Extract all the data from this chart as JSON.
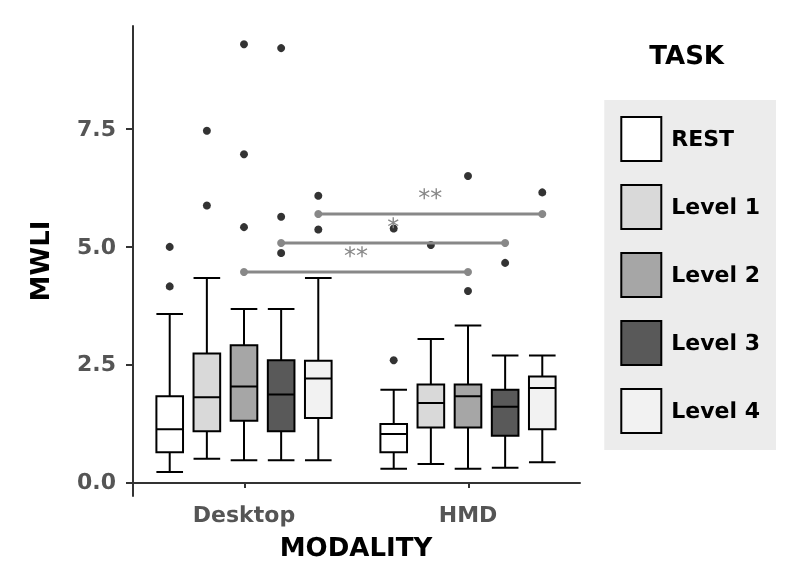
{
  "chart_data": {
    "type": "box",
    "xlabel": "MODALITY",
    "ylabel": "MWLI",
    "legend_title": "TASK",
    "legend": "right",
    "grid": false,
    "categories": [
      "Desktop",
      "HMD"
    ],
    "ylim": [
      -0.3,
      9.7
    ],
    "yticks": [
      {
        "value": 0,
        "label": "0.0"
      },
      {
        "value": 2.5,
        "label": "2.5"
      },
      {
        "value": 5,
        "label": "5.0"
      },
      {
        "value": 7.5,
        "label": "7.5"
      }
    ],
    "series": [
      {
        "name": "REST",
        "color": "#ffffff",
        "boxes": [
          {
            "low": 0.21,
            "q1": 0.63,
            "median": 1.12,
            "q3": 1.82,
            "high": 3.57,
            "outliers": [
              4.16,
              5.0
            ]
          },
          {
            "low": 0.28,
            "q1": 0.63,
            "median": 1.02,
            "q3": 1.23,
            "high": 1.96,
            "outliers": [
              2.59,
              5.39
            ]
          }
        ]
      },
      {
        "name": "Level 1",
        "color": "#d9d9d9",
        "boxes": [
          {
            "low": 0.49,
            "q1": 1.08,
            "median": 1.8,
            "q3": 2.73,
            "high": 4.34,
            "outliers": [
              5.88,
              7.47
            ]
          },
          {
            "low": 0.38,
            "q1": 1.16,
            "median": 1.68,
            "q3": 2.07,
            "high": 3.04,
            "outliers": [
              5.04
            ]
          }
        ]
      },
      {
        "name": "Level 2",
        "color": "#a6a6a6",
        "boxes": [
          {
            "low": 0.46,
            "q1": 1.3,
            "median": 2.03,
            "q3": 2.91,
            "high": 3.68,
            "outliers": [
              5.42,
              6.97,
              9.31
            ]
          },
          {
            "low": 0.28,
            "q1": 1.16,
            "median": 1.82,
            "q3": 2.07,
            "high": 3.33,
            "outliers": [
              4.06,
              6.51
            ]
          }
        ]
      },
      {
        "name": "Level 3",
        "color": "#595959",
        "boxes": [
          {
            "low": 0.46,
            "q1": 1.08,
            "median": 1.86,
            "q3": 2.59,
            "high": 3.68,
            "outliers": [
              4.87,
              5.64,
              9.23
            ]
          },
          {
            "low": 0.3,
            "q1": 0.98,
            "median": 1.6,
            "q3": 1.96,
            "high": 2.69,
            "outliers": [
              4.66
            ]
          }
        ]
      },
      {
        "name": "Level 4",
        "color": "#f2f2f2",
        "boxes": [
          {
            "low": 0.46,
            "q1": 1.36,
            "median": 2.2,
            "q3": 2.58,
            "high": 4.34,
            "outliers": [
              5.37,
              6.09
            ]
          },
          {
            "low": 0.42,
            "q1": 1.12,
            "median": 2.0,
            "q3": 2.24,
            "high": 2.69,
            "outliers": [
              6.16
            ]
          }
        ]
      }
    ],
    "annotations": [
      "**",
      "*",
      "**"
    ]
  }
}
